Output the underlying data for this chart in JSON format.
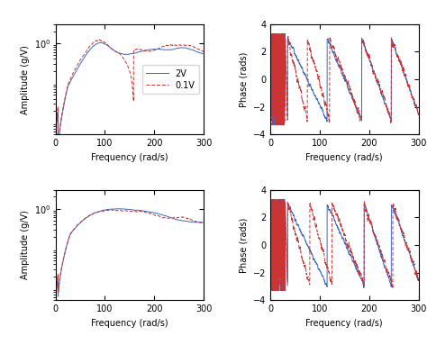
{
  "title": "",
  "freq_range": [
    0,
    300
  ],
  "phase_ylim": [
    -4,
    4
  ],
  "xlabel": "Frequency (rad/s)",
  "ylabel_amp": "Amplitude (g/V)",
  "ylabel_phase": "Phase (rads)",
  "legend_labels": [
    "2V",
    "0.1V"
  ],
  "color_2V": "#3a6bbf",
  "color_01V": "#cc3333",
  "xticks": [
    0,
    100,
    200,
    300
  ],
  "phase_yticks": [
    -4,
    -2,
    0,
    2,
    4
  ],
  "figsize": [
    4.74,
    3.83
  ],
  "dpi": 100
}
